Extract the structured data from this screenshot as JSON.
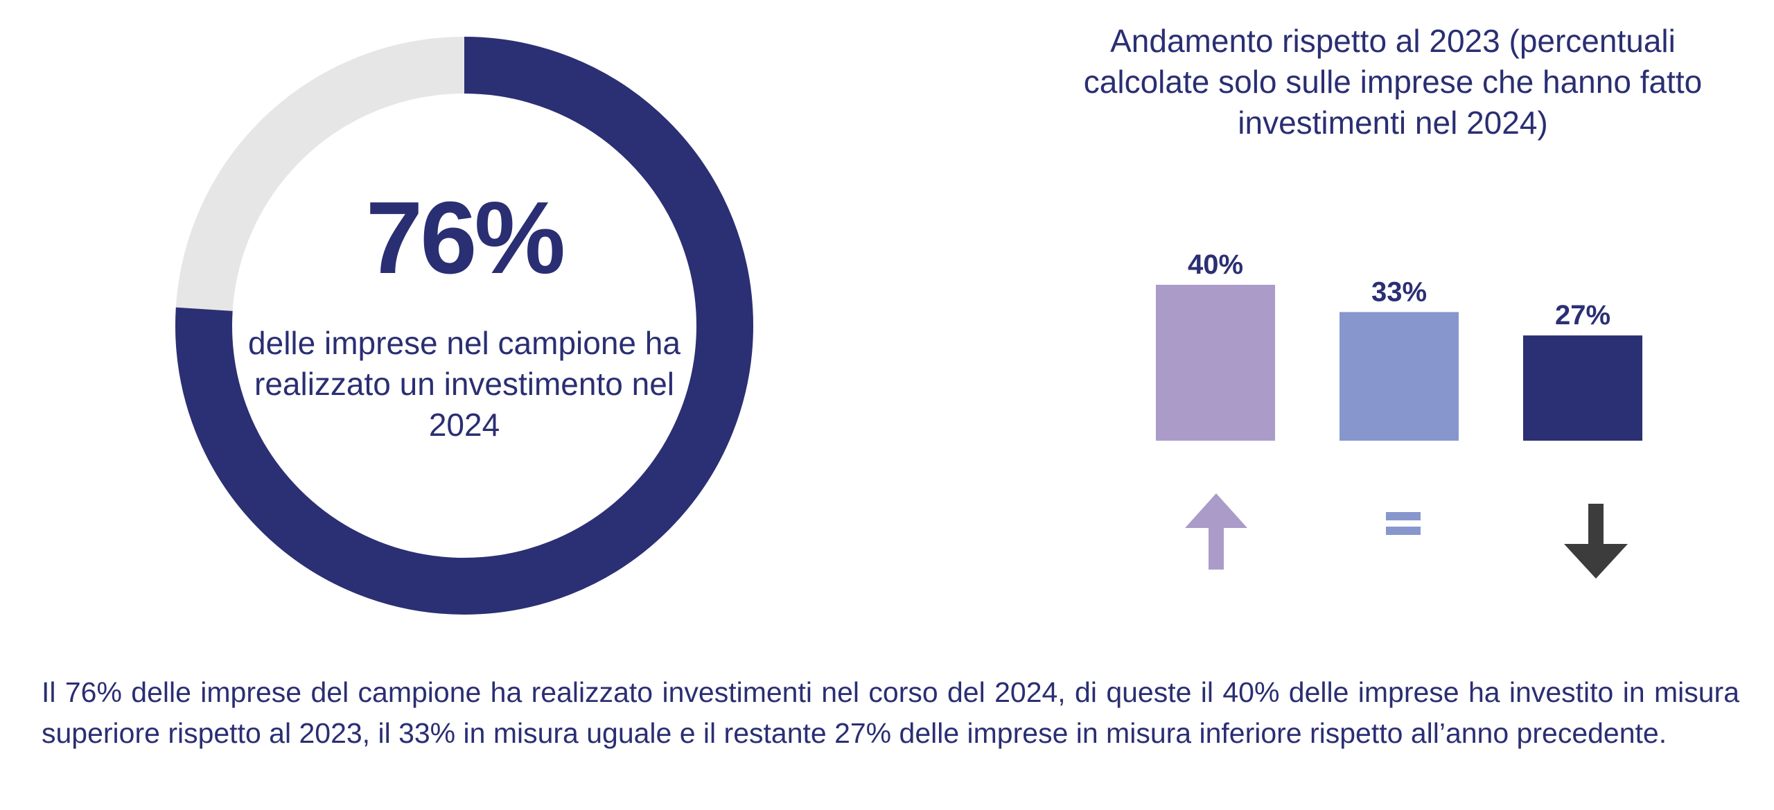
{
  "colors": {
    "primary": "#2b2f73",
    "track": "#e6e6e6",
    "bar_up": "#ab9bc9",
    "bar_equal": "#8797cd",
    "bar_down": "#2b2f73",
    "arrow_down": "#3c3c3c"
  },
  "chart_data": [
    {
      "type": "pie",
      "style": "donut",
      "values": [
        76,
        24
      ],
      "center_value": "76%",
      "center_caption": "delle imprese nel campione ha realizzato un investimento nel 2024"
    },
    {
      "type": "bar",
      "title": "Andamento rispetto al 2023 (percentuali calcolate solo sulle imprese che hanno fatto investimenti nel 2024)",
      "categories": [
        "up",
        "equal",
        "down"
      ],
      "category_icons": [
        "arrow-up-icon",
        "equals-icon",
        "arrow-down-icon"
      ],
      "values": [
        40,
        33,
        27
      ],
      "data_labels": [
        "40%",
        "33%",
        "27%"
      ],
      "ylim": [
        0,
        40
      ],
      "grid": false,
      "legend": "none"
    }
  ],
  "summary": "Il 76% delle imprese del campione ha realizzato investimenti nel corso del 2024, di queste il 40% delle imprese ha investito in misura superiore rispetto al 2023, il 33% in misura uguale e il restante 27% delle imprese in misura inferiore rispetto all’anno precedente."
}
